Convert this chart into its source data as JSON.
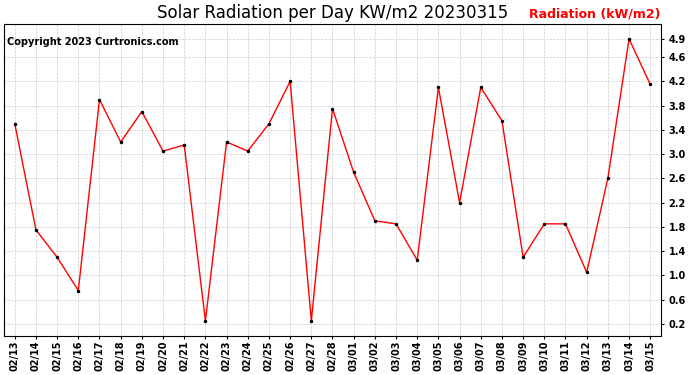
{
  "title": "Solar Radiation per Day KW/m2 20230315",
  "copyright": "Copyright 2023 Curtronics.com",
  "legend_label": "Radiation (kW/m2)",
  "dates": [
    "02/13",
    "02/14",
    "02/15",
    "02/16",
    "02/17",
    "02/18",
    "02/19",
    "02/20",
    "02/21",
    "02/22",
    "02/23",
    "02/24",
    "02/25",
    "02/26",
    "02/27",
    "02/28",
    "03/01",
    "03/02",
    "03/03",
    "03/04",
    "03/05",
    "03/06",
    "03/07",
    "03/08",
    "03/09",
    "03/10",
    "03/11",
    "03/12",
    "03/13",
    "03/14",
    "03/15"
  ],
  "values": [
    3.5,
    1.75,
    1.3,
    0.75,
    3.9,
    3.2,
    3.7,
    3.05,
    3.15,
    0.25,
    3.2,
    3.05,
    3.5,
    4.2,
    0.25,
    3.75,
    2.7,
    1.9,
    1.85,
    1.25,
    4.1,
    2.2,
    4.1,
    3.55,
    1.3,
    1.85,
    1.85,
    1.05,
    2.6,
    4.9,
    4.15
  ],
  "line_color": "red",
  "marker_color": "black",
  "grid_color": "#cccccc",
  "bg_color": "white",
  "ylim_min": 0.0,
  "ylim_max": 5.15,
  "yticks": [
    0.2,
    0.6,
    1.0,
    1.4,
    1.8,
    2.2,
    2.6,
    3.0,
    3.4,
    3.8,
    4.2,
    4.6,
    4.9
  ],
  "title_fontsize": 12,
  "copyright_fontsize": 7,
  "legend_fontsize": 9,
  "tick_fontsize": 7,
  "line_width": 1.0,
  "marker_size": 3
}
